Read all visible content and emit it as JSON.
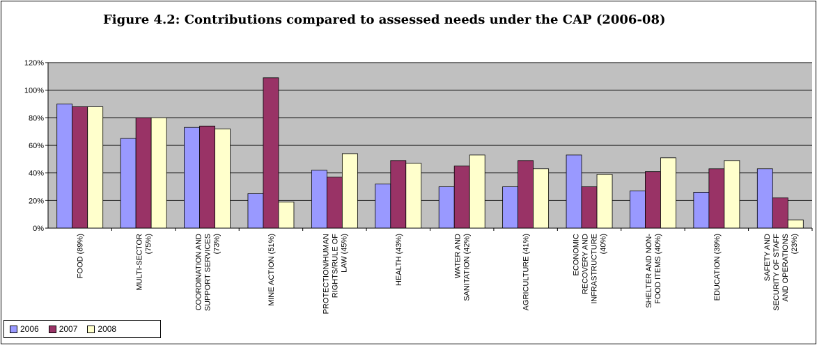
{
  "title": "Figure 4.2:  Contributions compared to assessed needs under the CAP (2006-08)",
  "chart_data": {
    "type": "bar",
    "ylim": [
      0,
      120
    ],
    "yticks": [
      "0%",
      "20%",
      "40%",
      "60%",
      "80%",
      "100%",
      "120%"
    ],
    "grid": true,
    "plot_background": "#c0c0c0",
    "legend_position": "bottom-left",
    "categories": [
      [
        "FOOD (89%)"
      ],
      [
        "MULTI-SECTOR",
        "(75%)"
      ],
      [
        "COORDINATION AND",
        "SUPPORT SERVICES",
        "(73%)"
      ],
      [
        "MINE ACTION (51%)"
      ],
      [
        "PROTECTION/HUMAN",
        "RIGHTS/RULE OF",
        "LAW (45%)"
      ],
      [
        "HEALTH (43%)"
      ],
      [
        "WATER AND",
        "SANITATION (42%)"
      ],
      [
        "AGRICULTURE (41%)"
      ],
      [
        "ECONOMIC",
        "RECOVERY AND",
        "INFRASTRUCTURE",
        "(40%)"
      ],
      [
        "SHELTER AND NON-",
        "FOOD ITEMS (40%)"
      ],
      [
        "EDUCATION (39%)"
      ],
      [
        "SAFETY AND",
        "SECURITY OF STAFF",
        "AND OPERATIONS",
        "(23%)"
      ]
    ],
    "series": [
      {
        "name": "2006",
        "color": "#9999ff",
        "values": [
          90,
          65,
          73,
          25,
          42,
          32,
          30,
          30,
          53,
          27,
          26,
          43
        ]
      },
      {
        "name": "2007",
        "color": "#993366",
        "values": [
          88,
          80,
          74,
          109,
          37,
          49,
          45,
          49,
          30,
          41,
          43,
          22
        ]
      },
      {
        "name": "2008",
        "color": "#ffffcc",
        "values": [
          88,
          80,
          72,
          19,
          54,
          47,
          53,
          43,
          39,
          51,
          49,
          6
        ]
      }
    ]
  }
}
